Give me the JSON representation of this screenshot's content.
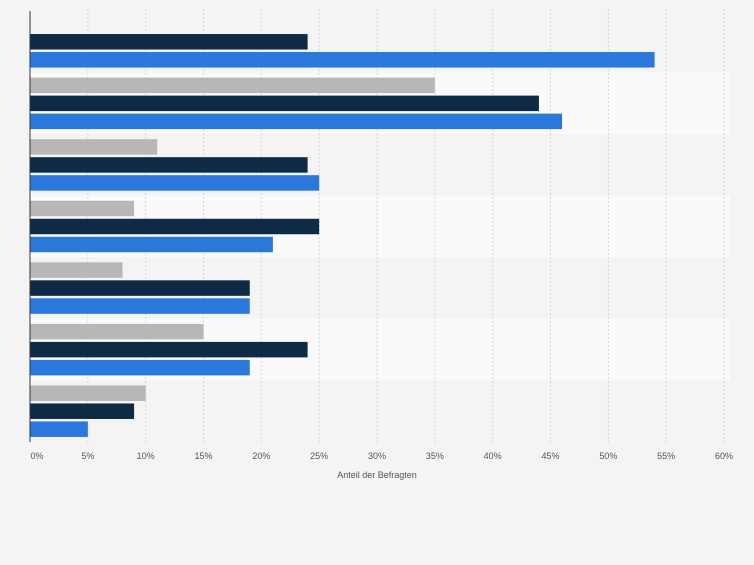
{
  "chart_data": {
    "type": "bar",
    "orientation": "horizontal",
    "categories": [
      "",
      "",
      "",
      "",
      "",
      "",
      ""
    ],
    "series": [
      {
        "values": [
          null,
          35,
          11,
          9,
          8,
          15,
          10
        ],
        "color": "#b7b7b7"
      },
      {
        "values": [
          24,
          44,
          24,
          25,
          19,
          24,
          9
        ],
        "color": "#0f2a44"
      },
      {
        "values": [
          54,
          46,
          25,
          21,
          19,
          19,
          5
        ],
        "color": "#2a78dc"
      }
    ],
    "xlabel": "Anteil der Befragten",
    "xlim": [
      0,
      60
    ],
    "xticks": [
      0,
      5,
      10,
      15,
      20,
      25,
      30,
      35,
      40,
      45,
      50,
      55,
      60
    ],
    "xtick_labels": [
      "0%",
      "5%",
      "10%",
      "15%",
      "20%",
      "25%",
      "30%",
      "35%",
      "40%",
      "45%",
      "50%",
      "55%",
      "60%"
    ],
    "grid": true,
    "legend": "none"
  }
}
